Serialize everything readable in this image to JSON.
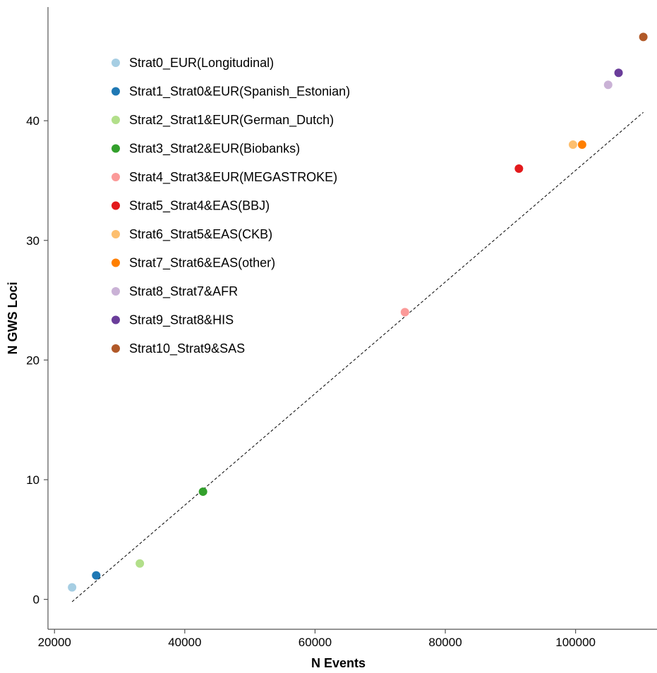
{
  "chart_data": {
    "type": "scatter",
    "xlabel": "N Events",
    "ylabel": "N GWS Loci",
    "xlim": [
      19000,
      112500
    ],
    "ylim": [
      -2.5,
      49.5
    ],
    "x_ticks": [
      20000,
      40000,
      60000,
      80000,
      100000
    ],
    "y_ticks": [
      0,
      10,
      20,
      30,
      40
    ],
    "x_tick_labels": [
      "20000",
      "40000",
      "60000",
      "80000",
      "100000"
    ],
    "y_tick_labels": [
      "0",
      "10",
      "20",
      "30",
      "40"
    ],
    "grid": false,
    "legend_position": "top-left",
    "series": [
      {
        "name": "Strat0_EUR(Longitudinal)",
        "color": "#a6cee3",
        "x": 22700,
        "y": 1
      },
      {
        "name": "Strat1_Strat0&EUR(Spanish_Estonian)",
        "color": "#1f78b4",
        "x": 26400,
        "y": 2
      },
      {
        "name": "Strat2_Strat1&EUR(German_Dutch)",
        "color": "#b2df8a",
        "x": 33100,
        "y": 3
      },
      {
        "name": "Strat3_Strat2&EUR(Biobanks)",
        "color": "#33a02c",
        "x": 42800,
        "y": 9
      },
      {
        "name": "Strat4_Strat3&EUR(MEGASTROKE)",
        "color": "#fb9a99",
        "x": 73800,
        "y": 24
      },
      {
        "name": "Strat5_Strat4&EAS(BBJ)",
        "color": "#e31a1c",
        "x": 91300,
        "y": 36
      },
      {
        "name": "Strat6_Strat5&EAS(CKB)",
        "color": "#fdbf6f",
        "x": 99600,
        "y": 38
      },
      {
        "name": "Strat7_Strat6&EAS(other)",
        "color": "#ff7f00",
        "x": 101000,
        "y": 38
      },
      {
        "name": "Strat8_Strat7&AFR",
        "color": "#cab2d6",
        "x": 105000,
        "y": 43
      },
      {
        "name": "Strat9_Strat8&HIS",
        "color": "#6a3d9a",
        "x": 106600,
        "y": 44
      },
      {
        "name": "Strat10_Strat9&SAS",
        "color": "#b15928",
        "x": 110400,
        "y": 47
      }
    ],
    "reference_line": {
      "style": "dashed",
      "color": "#000000",
      "x": [
        22700,
        110400
      ],
      "y": [
        -0.2,
        40.7
      ]
    }
  }
}
